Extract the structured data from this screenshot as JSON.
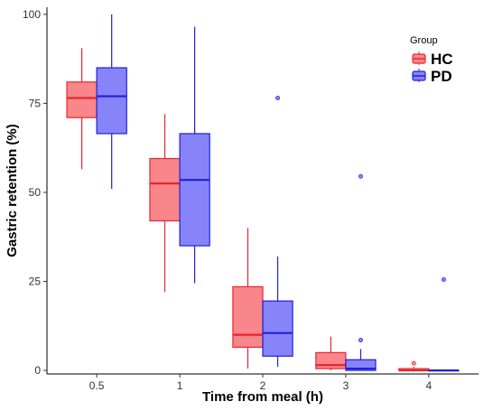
{
  "chart_data": {
    "type": "box",
    "xlabel": "Time from meal (h)",
    "ylabel": "Gastric retention (%)",
    "categories": [
      "0.5",
      "1",
      "2",
      "3",
      "4"
    ],
    "y_ticks": [
      "0",
      "25",
      "50",
      "75",
      "100"
    ],
    "ylim": [
      -1,
      102
    ],
    "grid": false,
    "legend": {
      "title": "Group",
      "position": "top-right"
    },
    "series": [
      {
        "name": "HC",
        "fill": "#f8868a",
        "stroke": "#e8262c",
        "boxes": [
          {
            "min": 56.5,
            "q1": 71,
            "median": 76.5,
            "q3": 81,
            "max": 90.5,
            "outliers": []
          },
          {
            "min": 22,
            "q1": 42,
            "median": 52.5,
            "q3": 59.5,
            "max": 72,
            "outliers": []
          },
          {
            "min": 0.5,
            "q1": 6.5,
            "median": 10,
            "q3": 23.5,
            "max": 40,
            "outliers": []
          },
          {
            "min": 0,
            "q1": 0.5,
            "median": 1.5,
            "q3": 5,
            "max": 9.5,
            "outliers": []
          },
          {
            "min": 0,
            "q1": 0,
            "median": 0,
            "q3": 0.5,
            "max": 1,
            "outliers": [
              2
            ]
          }
        ]
      },
      {
        "name": "PD",
        "fill": "#8684f8",
        "stroke": "#2020d8",
        "boxes": [
          {
            "min": 51,
            "q1": 66.5,
            "median": 77,
            "q3": 85,
            "max": 100,
            "outliers": []
          },
          {
            "min": 24.5,
            "q1": 35,
            "median": 53.5,
            "q3": 66.5,
            "max": 96.5,
            "outliers": []
          },
          {
            "min": 1,
            "q1": 4,
            "median": 10.5,
            "q3": 19.5,
            "max": 32,
            "outliers": [
              76.5
            ]
          },
          {
            "min": 0,
            "q1": 0,
            "median": 0.5,
            "q3": 3,
            "max": 6,
            "outliers": [
              8.5,
              54.5
            ]
          },
          {
            "min": 0,
            "q1": 0,
            "median": 0,
            "q3": 0,
            "max": 0,
            "outliers": [
              25.5
            ]
          }
        ]
      }
    ]
  }
}
